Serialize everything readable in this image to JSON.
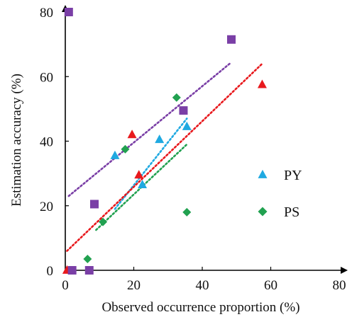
{
  "chart_data": {
    "type": "scatter",
    "xlabel": "Observed occurrence proportion (%)",
    "ylabel": "Estimation accuracy (%)",
    "xlim": [
      0,
      80
    ],
    "ylim": [
      0,
      80
    ],
    "x_ticks": [
      0,
      20,
      40,
      60,
      80
    ],
    "y_ticks": [
      0,
      20,
      40,
      60,
      80
    ],
    "x_tick_labels": [
      "0",
      "20",
      "40",
      "60",
      "80"
    ],
    "y_tick_labels": [
      "0",
      "20",
      "40",
      "60",
      "80"
    ],
    "grid": false,
    "legend_position": "right",
    "series": [
      {
        "name": "PY",
        "marker": "triangle",
        "color": "#1fa9e1",
        "points": [
          [
            14.5,
            35.5
          ],
          [
            22.5,
            26.5
          ],
          [
            27.5,
            40.5
          ],
          [
            35.5,
            44.5
          ]
        ],
        "trend": [
          [
            14.5,
            19
          ],
          [
            35.5,
            47
          ]
        ]
      },
      {
        "name": "PS",
        "marker": "diamond",
        "color": "#21a150",
        "points": [
          [
            6.5,
            3.5
          ],
          [
            11,
            15
          ],
          [
            17.5,
            37.5
          ],
          [
            32.5,
            53.5
          ],
          [
            35.5,
            18
          ]
        ],
        "trend": [
          [
            9,
            12.5
          ],
          [
            35.5,
            39
          ]
        ]
      },
      {
        "marker": "triangle",
        "color": "#e8191d",
        "points": [
          [
            0.5,
            0
          ],
          [
            19.5,
            42
          ],
          [
            21.5,
            29.5
          ],
          [
            57.5,
            57.5
          ]
        ],
        "trend": [
          [
            0.5,
            6
          ],
          [
            57.5,
            64
          ]
        ]
      },
      {
        "marker": "square",
        "color": "#7a3fa6",
        "points": [
          [
            1,
            80
          ],
          [
            2,
            0
          ],
          [
            7,
            0
          ],
          [
            8.5,
            20.5
          ],
          [
            34.5,
            49.5
          ],
          [
            48.5,
            71.5
          ]
        ],
        "trend": [
          [
            1,
            23
          ],
          [
            48,
            64
          ]
        ]
      }
    ]
  }
}
